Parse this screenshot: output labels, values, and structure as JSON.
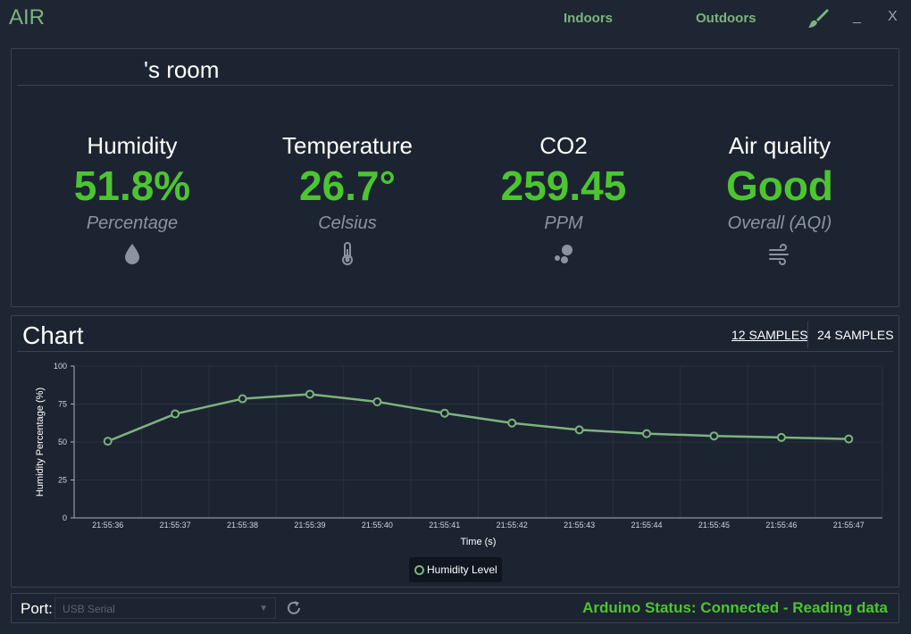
{
  "app": {
    "title": "AIR",
    "tabs": [
      {
        "label": "Indoors"
      },
      {
        "label": "Outdoors"
      }
    ],
    "theme_icon": "paintbrush-icon",
    "minimize_label": "_",
    "close_label": "X"
  },
  "room": {
    "title": "'s room"
  },
  "metrics": [
    {
      "label": "Humidity",
      "value": "51.8%",
      "unit": "Percentage",
      "icon": "droplet-icon"
    },
    {
      "label": "Temperature",
      "value": "26.7°",
      "unit": "Celsius",
      "icon": "thermometer-icon"
    },
    {
      "label": "CO2",
      "value": "259.45",
      "unit": "PPM",
      "icon": "molecule-icon"
    },
    {
      "label": "Air quality",
      "value": "Good",
      "unit": "Overall (AQI)",
      "icon": "wind-icon"
    }
  ],
  "chart_section": {
    "title": "Chart",
    "sample_options": [
      {
        "label": "12 SAMPLES",
        "selected": true
      },
      {
        "label": "24 SAMPLES",
        "selected": false
      }
    ]
  },
  "chart_data": {
    "type": "line",
    "xlabel": "Time (s)",
    "ylabel": "Humidity Percentage (%)",
    "ylim": [
      0,
      100
    ],
    "yticks": [
      0,
      25,
      50,
      75,
      100
    ],
    "grid": true,
    "legend_position": "bottom",
    "categories": [
      "21:55:36",
      "21:55:37",
      "21:55:38",
      "21:55:39",
      "21:55:40",
      "21:55:41",
      "21:55:42",
      "21:55:43",
      "21:55:44",
      "21:55:45",
      "21:55:46",
      "21:55:47"
    ],
    "series": [
      {
        "name": "Humidity Level",
        "color": "#7db37f",
        "values": [
          50.5,
          68.5,
          78.5,
          81.5,
          76.5,
          69,
          62.5,
          58,
          55.5,
          54,
          53,
          52
        ]
      }
    ]
  },
  "footer": {
    "port_label": "Port:",
    "port_value": "USB Serial",
    "refresh_icon": "refresh-icon",
    "status": "Arduino Status: Connected - Reading data"
  },
  "colors": {
    "accent": "#7db37f",
    "value_green": "#4cc531",
    "background": "#1e2633"
  }
}
